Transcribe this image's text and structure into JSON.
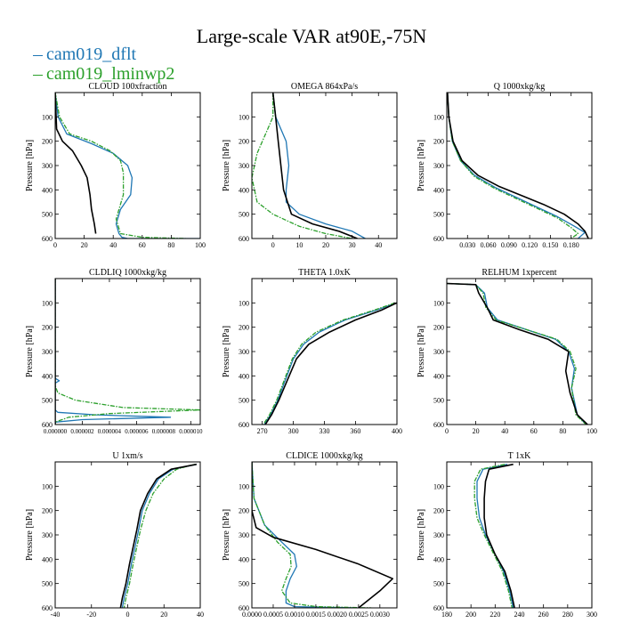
{
  "title": "Large-scale VAR at90E,-75N",
  "legend": [
    "cam019_dflt",
    "cam019_lminwp2"
  ],
  "colors": {
    "series": [
      "#1f77b4",
      "#2ca02c",
      "#000000"
    ]
  },
  "chart_data": [
    {
      "type": "line",
      "title": "CLOUD  100xfraction",
      "ylabel": "Pressure [hPa]",
      "xlim": [
        0,
        100
      ],
      "ylim": [
        0,
        600
      ],
      "y_inverted": true,
      "xticks": [
        0,
        20,
        40,
        60,
        80,
        100
      ],
      "xtick_labels": [
        "0",
        "20",
        "40",
        "60",
        "80",
        "100"
      ],
      "yticks": [
        100,
        200,
        300,
        400,
        500,
        600
      ],
      "series": [
        {
          "name": "cam019_dflt",
          "color": "#1f77b4",
          "dashed": false,
          "x": [
            0,
            2,
            8,
            25,
            40,
            50,
            53,
            52,
            45,
            42,
            44,
            46,
            50,
            100
          ],
          "y": [
            0,
            100,
            170,
            210,
            250,
            300,
            350,
            420,
            480,
            540,
            580,
            595,
            600,
            600
          ]
        },
        {
          "name": "cam019_lminwp2",
          "color": "#2ca02c",
          "dashed": true,
          "x": [
            0,
            3,
            10,
            25,
            38,
            45,
            47,
            47,
            44,
            42,
            45,
            60,
            90
          ],
          "y": [
            0,
            100,
            170,
            200,
            240,
            280,
            330,
            420,
            480,
            520,
            580,
            595,
            600
          ]
        },
        {
          "name": "",
          "color": "#000000",
          "dashed": false,
          "x": [
            0,
            1,
            5,
            12,
            18,
            22,
            24,
            25,
            27,
            28
          ],
          "y": [
            0,
            150,
            200,
            240,
            300,
            350,
            420,
            480,
            540,
            580
          ]
        }
      ]
    },
    {
      "type": "line",
      "title": "OMEGA  864xPa/s",
      "ylabel": "Pressure [hPa]",
      "xlim": [
        -8,
        47
      ],
      "ylim": [
        0,
        600
      ],
      "y_inverted": true,
      "xticks": [
        0,
        10,
        20,
        30,
        40
      ],
      "xtick_labels": [
        "0",
        "10",
        "20",
        "30",
        "40"
      ],
      "yticks": [
        100,
        200,
        300,
        400,
        500,
        600
      ],
      "series": [
        {
          "name": "cam019_dflt",
          "color": "#1f77b4",
          "dashed": false,
          "x": [
            0,
            1,
            3,
            5,
            6,
            5,
            5,
            10,
            20,
            30,
            35
          ],
          "y": [
            0,
            100,
            150,
            200,
            300,
            400,
            450,
            500,
            540,
            570,
            600
          ]
        },
        {
          "name": "cam019_lminwp2",
          "color": "#2ca02c",
          "dashed": true,
          "x": [
            0,
            0,
            -2,
            -6,
            -8,
            -6,
            0,
            10,
            20,
            30
          ],
          "y": [
            0,
            100,
            150,
            250,
            350,
            450,
            500,
            550,
            580,
            600
          ]
        },
        {
          "name": "",
          "color": "#000000",
          "dashed": false,
          "x": [
            0,
            1,
            2,
            3,
            4,
            7,
            15,
            25,
            32
          ],
          "y": [
            0,
            100,
            200,
            300,
            400,
            500,
            540,
            570,
            600
          ]
        }
      ]
    },
    {
      "type": "line",
      "title": "Q  1000xkg/kg",
      "ylabel": "Pressure [hPa]",
      "xlim": [
        0,
        0.21
      ],
      "ylim": [
        0,
        600
      ],
      "y_inverted": true,
      "xticks": [
        0.03,
        0.06,
        0.09,
        0.12,
        0.15,
        0.18
      ],
      "xtick_labels": [
        "0.030",
        "0.060",
        "0.090",
        "0.120",
        "0.150",
        "0.180"
      ],
      "yticks": [
        100,
        200,
        300,
        400,
        500,
        600
      ],
      "series": [
        {
          "name": "cam019_dflt",
          "color": "#1f77b4",
          "dashed": false,
          "x": [
            0.001,
            0.003,
            0.008,
            0.02,
            0.04,
            0.07,
            0.1,
            0.13,
            0.16,
            0.185,
            0.2,
            0.19
          ],
          "y": [
            0,
            100,
            200,
            280,
            340,
            390,
            430,
            470,
            510,
            550,
            575,
            600
          ]
        },
        {
          "name": "cam019_lminwp2",
          "color": "#2ca02c",
          "dashed": true,
          "x": [
            0.001,
            0.003,
            0.008,
            0.02,
            0.04,
            0.07,
            0.1,
            0.13,
            0.16,
            0.18,
            0.19,
            0.18
          ],
          "y": [
            0,
            100,
            200,
            280,
            345,
            395,
            435,
            475,
            515,
            555,
            580,
            600
          ]
        },
        {
          "name": "",
          "color": "#000000",
          "dashed": false,
          "x": [
            0.001,
            0.003,
            0.009,
            0.022,
            0.045,
            0.075,
            0.11,
            0.14,
            0.17,
            0.19,
            0.2,
            0.205
          ],
          "y": [
            0,
            100,
            200,
            280,
            340,
            385,
            425,
            460,
            500,
            540,
            570,
            600
          ]
        }
      ]
    },
    {
      "type": "line",
      "title": "CLDLIQ  1000xkg/kg",
      "ylabel": "Pressure [hPa]",
      "xlim": [
        0,
        1.07e-05
      ],
      "ylim": [
        0,
        600
      ],
      "y_inverted": true,
      "xticks": [
        0,
        2e-06,
        4e-06,
        6e-06,
        8e-06,
        1e-05
      ],
      "xtick_labels": [
        "0.000000",
        "0.000002",
        "0.000004",
        "0.000006",
        "0.000008",
        "0.000010"
      ],
      "yticks": [
        100,
        200,
        300,
        400,
        500,
        600
      ],
      "series": [
        {
          "name": "cam019_dflt",
          "color": "#1f77b4",
          "dashed": false,
          "x": [
            0,
            0,
            3e-07,
            0,
            0,
            2e-07,
            3e-06,
            8.5e-06,
            2e-06,
            0,
            0
          ],
          "y": [
            0,
            410,
            420,
            430,
            540,
            550,
            560,
            570,
            580,
            590,
            600
          ]
        },
        {
          "name": "cam019_lminwp2",
          "color": "#2ca02c",
          "dashed": true,
          "x": [
            0,
            0,
            2e-07,
            1.5e-06,
            5e-06,
            1.07e-05,
            4e-06,
            1e-06,
            0,
            0
          ],
          "y": [
            0,
            440,
            470,
            500,
            530,
            540,
            555,
            570,
            590,
            600
          ]
        },
        {
          "name": "",
          "color": "#000000",
          "dashed": false,
          "x": [
            0,
            0
          ],
          "y": [
            0,
            600
          ]
        }
      ]
    },
    {
      "type": "line",
      "title": "THETA  1.0xK",
      "ylabel": "Pressure [hPa]",
      "xlim": [
        260,
        400
      ],
      "ylim": [
        0,
        600
      ],
      "y_inverted": true,
      "xticks": [
        270,
        300,
        330,
        360,
        400
      ],
      "xtick_labels": [
        "270",
        "300",
        "330",
        "360",
        "400"
      ],
      "yticks": [
        100,
        200,
        300,
        400,
        500,
        600
      ],
      "series": [
        {
          "name": "cam019_dflt",
          "color": "#1f77b4",
          "dashed": false,
          "x": [
            400,
            380,
            350,
            325,
            310,
            300,
            292,
            285,
            278,
            272
          ],
          "y": [
            100,
            130,
            170,
            220,
            270,
            330,
            420,
            500,
            560,
            600
          ]
        },
        {
          "name": "cam019_lminwp2",
          "color": "#2ca02c",
          "dashed": true,
          "x": [
            398,
            378,
            348,
            322,
            308,
            299,
            291,
            284,
            277,
            271
          ],
          "y": [
            100,
            130,
            170,
            220,
            270,
            330,
            420,
            500,
            560,
            600
          ]
        },
        {
          "name": "",
          "color": "#000000",
          "dashed": false,
          "x": [
            400,
            385,
            360,
            335,
            315,
            303,
            294,
            286,
            279,
            273
          ],
          "y": [
            100,
            130,
            170,
            220,
            270,
            330,
            420,
            500,
            560,
            600
          ]
        }
      ]
    },
    {
      "type": "line",
      "title": "RELHUM  1xpercent",
      "ylabel": "Pressure [hPa]",
      "xlim": [
        0,
        100
      ],
      "ylim": [
        0,
        600
      ],
      "y_inverted": true,
      "xticks": [
        0,
        20,
        40,
        60,
        80,
        100
      ],
      "xtick_labels": [
        "0",
        "20",
        "40",
        "60",
        "80",
        "100"
      ],
      "yticks": [
        100,
        200,
        300,
        400,
        500,
        600
      ],
      "series": [
        {
          "name": "cam019_dflt",
          "color": "#1f77b4",
          "dashed": false,
          "x": [
            0,
            20,
            26,
            28,
            35,
            55,
            75,
            84,
            88,
            86,
            90,
            96
          ],
          "y": [
            20,
            25,
            60,
            120,
            170,
            210,
            250,
            300,
            370,
            450,
            560,
            600
          ]
        },
        {
          "name": "cam019_lminwp2",
          "color": "#2ca02c",
          "dashed": true,
          "x": [
            0,
            20,
            25,
            27,
            34,
            55,
            76,
            85,
            89,
            86,
            89,
            96
          ],
          "y": [
            20,
            25,
            60,
            120,
            170,
            210,
            250,
            300,
            370,
            450,
            560,
            600
          ]
        },
        {
          "name": "",
          "color": "#000000",
          "dashed": false,
          "x": [
            0,
            20,
            22,
            28,
            32,
            50,
            70,
            84,
            82,
            85,
            90,
            97
          ],
          "y": [
            20,
            25,
            60,
            120,
            170,
            210,
            250,
            300,
            380,
            470,
            560,
            600
          ]
        }
      ]
    },
    {
      "type": "line",
      "title": "U  1xm/s",
      "ylabel": "Pressure [hPa]",
      "xlim": [
        -40,
        40
      ],
      "ylim": [
        0,
        600
      ],
      "y_inverted": true,
      "xticks": [
        -40,
        -20,
        0,
        20,
        40
      ],
      "xtick_labels": [
        "-40",
        "-20",
        "0",
        "20",
        "40"
      ],
      "yticks": [
        100,
        200,
        300,
        400,
        500,
        600
      ],
      "series": [
        {
          "name": "cam019_dflt",
          "color": "#1f77b4",
          "dashed": false,
          "x": [
            38,
            25,
            17,
            12,
            8,
            6,
            4,
            2,
            0,
            -2,
            -3
          ],
          "y": [
            10,
            30,
            70,
            130,
            200,
            280,
            350,
            420,
            500,
            560,
            600
          ]
        },
        {
          "name": "cam019_lminwp2",
          "color": "#2ca02c",
          "dashed": true,
          "x": [
            37,
            27,
            20,
            14,
            10,
            7,
            5,
            3,
            1,
            -1,
            -2
          ],
          "y": [
            10,
            30,
            70,
            130,
            200,
            280,
            350,
            420,
            500,
            560,
            600
          ]
        },
        {
          "name": "",
          "color": "#000000",
          "dashed": false,
          "x": [
            38,
            24,
            16,
            11,
            7,
            5,
            3,
            1,
            -1,
            -3,
            -4
          ],
          "y": [
            10,
            30,
            70,
            130,
            200,
            280,
            350,
            420,
            500,
            560,
            600
          ]
        }
      ]
    },
    {
      "type": "line",
      "title": "CLDICE  1000xkg/kg",
      "ylabel": "Pressure [hPa]",
      "xlim": [
        0,
        0.0034
      ],
      "ylim": [
        0,
        600
      ],
      "y_inverted": true,
      "xticks": [
        0,
        0.0005,
        0.001,
        0.0015,
        0.002,
        0.0025,
        0.003
      ],
      "xtick_labels": [
        "0.0000",
        "0.0005",
        "0.0010",
        "0.0015",
        "0.0020",
        "0.0025",
        "0.0030"
      ],
      "yticks": [
        100,
        200,
        300,
        400,
        500,
        600
      ],
      "series": [
        {
          "name": "cam019_dflt",
          "color": "#1f77b4",
          "dashed": false,
          "x": [
            0,
            5e-05,
            0.0003,
            0.0007,
            0.001,
            0.00105,
            0.0009,
            0.0008,
            0.0008,
            0.001,
            0.0025
          ],
          "y": [
            0,
            150,
            260,
            330,
            380,
            430,
            480,
            530,
            580,
            595,
            600
          ]
        },
        {
          "name": "cam019_lminwp2",
          "color": "#2ca02c",
          "dashed": true,
          "x": [
            0,
            5e-05,
            0.0003,
            0.0006,
            0.0009,
            0.00092,
            0.0008,
            0.0007,
            0.0009,
            0.0015,
            0.0028
          ],
          "y": [
            0,
            150,
            260,
            330,
            380,
            430,
            480,
            530,
            580,
            595,
            600
          ]
        },
        {
          "name": "",
          "color": "#000000",
          "dashed": false,
          "x": [
            0,
            0,
            0.0001,
            0.0005,
            0.0015,
            0.0025,
            0.0033,
            0.003,
            0.0025
          ],
          "y": [
            0,
            200,
            270,
            310,
            360,
            420,
            480,
            530,
            600
          ]
        }
      ]
    },
    {
      "type": "line",
      "title": "T  1xK",
      "ylabel": "Pressure [hPa]",
      "xlim": [
        180,
        300
      ],
      "ylim": [
        0,
        600
      ],
      "y_inverted": true,
      "xticks": [
        180,
        200,
        220,
        240,
        260,
        280,
        300
      ],
      "xtick_labels": [
        "180",
        "200",
        "220",
        "240",
        "260",
        "280",
        "300"
      ],
      "yticks": [
        100,
        200,
        300,
        400,
        500,
        600
      ],
      "series": [
        {
          "name": "cam019_dflt",
          "color": "#1f77b4",
          "dashed": false,
          "x": [
            230,
            210,
            205,
            205,
            207,
            212,
            220,
            227,
            232,
            235
          ],
          "y": [
            10,
            30,
            80,
            150,
            230,
            300,
            380,
            450,
            530,
            600
          ]
        },
        {
          "name": "cam019_lminwp2",
          "color": "#2ca02c",
          "dashed": true,
          "x": [
            228,
            208,
            203,
            203,
            205,
            211,
            219,
            226,
            231,
            234
          ],
          "y": [
            10,
            30,
            80,
            150,
            230,
            300,
            380,
            450,
            530,
            600
          ]
        },
        {
          "name": "",
          "color": "#000000",
          "dashed": false,
          "x": [
            235,
            215,
            212,
            211,
            211,
            213,
            220,
            228,
            233,
            236
          ],
          "y": [
            10,
            30,
            80,
            150,
            230,
            300,
            380,
            450,
            530,
            600
          ]
        }
      ]
    }
  ]
}
